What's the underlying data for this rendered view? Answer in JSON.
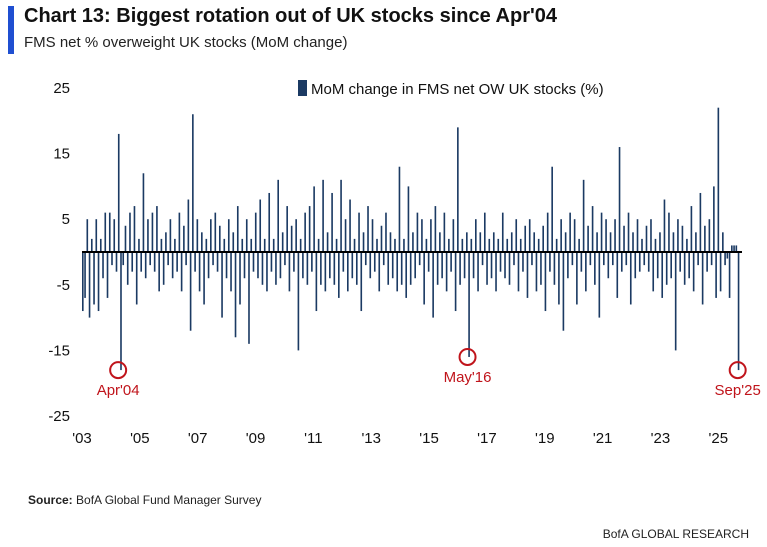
{
  "header": {
    "title": "Chart 13: Biggest rotation out of UK stocks since Apr'04",
    "subtitle": "FMS net % overweight UK stocks (MoM change)"
  },
  "source": {
    "label": "Source:",
    "text": "BofA Global Fund Manager Survey"
  },
  "footer": {
    "brand": "BofA GLOBAL RESEARCH"
  },
  "colors": {
    "bar": "#1b3a63",
    "accent": "#1f4fd1",
    "annotation": "#c0141b"
  },
  "chart_data": {
    "type": "bar",
    "title": "",
    "legend": {
      "label": "MoM change in FMS net OW UK stocks (%)",
      "position": "top-right"
    },
    "ylim": [
      -25,
      25
    ],
    "yticks": [
      25,
      15,
      5,
      -5,
      -15,
      -25
    ],
    "x_start_year": 2003,
    "x_end_year": 2025.75,
    "x_ticks": [
      {
        "label": "'03",
        "year": 2003
      },
      {
        "label": "'05",
        "year": 2005
      },
      {
        "label": "'07",
        "year": 2007
      },
      {
        "label": "'09",
        "year": 2009
      },
      {
        "label": "'11",
        "year": 2011
      },
      {
        "label": "'13",
        "year": 2013
      },
      {
        "label": "'15",
        "year": 2015
      },
      {
        "label": "'17",
        "year": 2017
      },
      {
        "label": "'19",
        "year": 2019
      },
      {
        "label": "'21",
        "year": 2021
      },
      {
        "label": "'23",
        "year": 2023
      },
      {
        "label": "'25",
        "year": 2025
      }
    ],
    "annotations": [
      {
        "label": "Apr'04",
        "year": 2004.25,
        "value": -18
      },
      {
        "label": "May'16",
        "year": 2016.33,
        "value": -16
      },
      {
        "label": "Sep'25",
        "year": 2025.67,
        "value": -18
      }
    ],
    "values": [
      -9,
      -7,
      5,
      -10,
      2,
      -8,
      5,
      -9,
      2,
      -4,
      6,
      -7,
      6,
      -2,
      5,
      -3,
      18,
      -18,
      -2,
      4,
      -5,
      6,
      -3,
      7,
      -8,
      2,
      -3,
      12,
      -4,
      5,
      -2,
      6,
      -3,
      7,
      -6,
      2,
      -5,
      3,
      -2,
      5,
      -4,
      2,
      -3,
      6,
      -6,
      4,
      -2,
      8,
      -12,
      21,
      -3,
      5,
      -6,
      3,
      -8,
      2,
      -4,
      5,
      -2,
      6,
      -3,
      4,
      -10,
      2,
      -4,
      5,
      -6,
      3,
      -13,
      7,
      -8,
      2,
      -4,
      5,
      -14,
      2,
      -3,
      6,
      -4,
      8,
      -5,
      2,
      -6,
      9,
      -3,
      2,
      -5,
      11,
      -4,
      3,
      -2,
      7,
      -6,
      4,
      -3,
      5,
      -15,
      2,
      -4,
      6,
      -5,
      7,
      -3,
      10,
      -9,
      2,
      -5,
      11,
      -6,
      3,
      -4,
      9,
      -5,
      2,
      -7,
      11,
      -3,
      5,
      -6,
      8,
      -4,
      2,
      -5,
      6,
      -9,
      3,
      -2,
      7,
      -4,
      5,
      -3,
      2,
      -6,
      4,
      -2,
      6,
      -5,
      3,
      -4,
      2,
      -6,
      13,
      -5,
      2,
      -7,
      10,
      -5,
      3,
      -4,
      6,
      -2,
      5,
      -8,
      2,
      -3,
      5,
      -10,
      7,
      -5,
      3,
      -4,
      6,
      -6,
      2,
      -3,
      5,
      -9,
      19,
      -5,
      2,
      -4,
      3,
      -16,
      2,
      -4,
      5,
      -6,
      3,
      -2,
      6,
      -5,
      2,
      -4,
      3,
      -6,
      2,
      -3,
      6,
      -4,
      2,
      -5,
      3,
      -2,
      5,
      -6,
      2,
      -3,
      4,
      -7,
      5,
      -2,
      3,
      -6,
      2,
      -5,
      4,
      -9,
      6,
      -3,
      13,
      -5,
      2,
      -8,
      5,
      -12,
      3,
      -4,
      6,
      -2,
      5,
      -8,
      2,
      -3,
      11,
      -6,
      4,
      -2,
      7,
      -5,
      3,
      -10,
      6,
      -2,
      5,
      -4,
      3,
      -2,
      5,
      -7,
      16,
      -3,
      4,
      -2,
      6,
      -8,
      3,
      -4,
      5,
      -3,
      2,
      -2,
      4,
      -3,
      5,
      -6,
      2,
      -4,
      3,
      -7,
      8,
      -5,
      6,
      -4,
      3,
      -15,
      5,
      -3,
      4,
      -5,
      2,
      -4,
      7,
      -6,
      3,
      -2,
      9,
      -8,
      4,
      -3,
      5,
      -2,
      10,
      -7,
      22,
      -6,
      3,
      -2,
      -1,
      -7,
      1,
      1,
      1,
      -18
    ]
  }
}
